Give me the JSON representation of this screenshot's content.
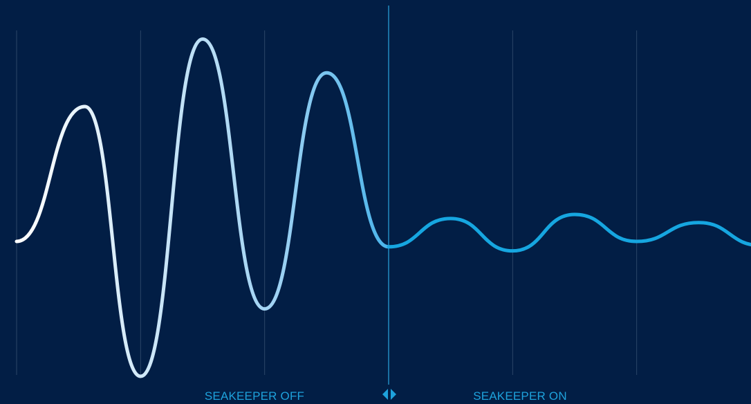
{
  "colors": {
    "background": "#021e45",
    "grid": "#2c4668",
    "divider": "#2aa7e0",
    "label": "#1ea2dc",
    "wave_off_gradient": [
      "#ffffff",
      "#cfe8f8",
      "#9fd2f3",
      "#4bb4ea"
    ],
    "wave_on": "#16a6e0",
    "handle": "#1ea2dc"
  },
  "labels": {
    "off": "SEAKEEPER OFF",
    "on": "SEAKEEPER ON"
  },
  "divider_handle": {
    "icon": "left-right-arrows-icon"
  },
  "chart_data": {
    "type": "line",
    "title": "",
    "xlabel": "",
    "ylabel": "",
    "grid": true,
    "xlim": [
      0,
      6
    ],
    "ylim": [
      -1.3,
      1.9
    ],
    "x_gridlines": [
      0,
      1,
      2,
      3,
      4,
      5
    ],
    "divider_x": 3,
    "series": [
      {
        "segment": "off",
        "x": [
          0,
          0.55,
          1.0,
          1.5,
          2.0,
          2.5,
          3.0
        ],
        "y": [
          0,
          1.0,
          -1.0,
          1.5,
          -0.5,
          1.25,
          -0.04
        ]
      },
      {
        "segment": "on",
        "x": [
          3.0,
          3.5,
          4.0,
          4.5,
          5.0,
          5.5,
          6.0
        ],
        "y": [
          -0.04,
          0.17,
          -0.07,
          0.2,
          0.0,
          0.14,
          -0.03
        ]
      }
    ]
  }
}
